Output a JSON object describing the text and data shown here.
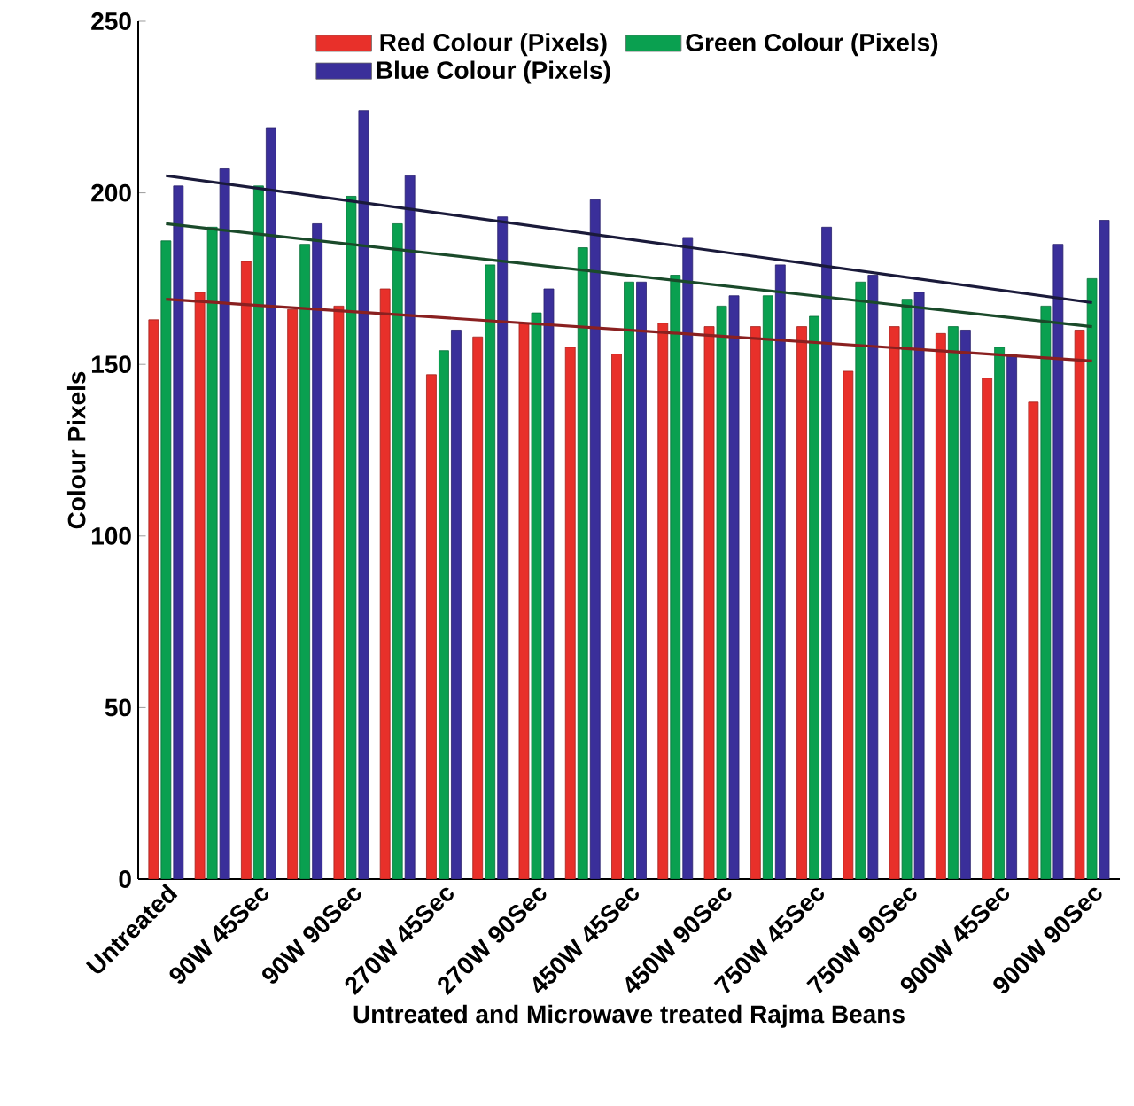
{
  "chart_data": {
    "type": "bar",
    "xlabel": "Untreated and Microwave treated Rajma Beans",
    "ylabel": "Colour Pixels",
    "categories": [
      "Untreated",
      null,
      "90W 45Sec",
      null,
      "90W 90Sec",
      null,
      "270W 45Sec",
      null,
      "270W 90Sec",
      null,
      "450W 45Sec",
      null,
      "450W 90Sec",
      null,
      "750W 45Sec",
      null,
      "750W 90Sec",
      null,
      "900W 45Sec",
      null,
      "900W 90Sec"
    ],
    "series": [
      {
        "name": "Red Colour (Pixels)",
        "color": "#e8302a",
        "values": [
          163,
          171,
          180,
          166,
          167,
          172,
          147,
          158,
          162,
          155,
          153,
          162,
          161,
          161,
          161,
          148,
          161,
          159,
          146,
          139,
          160
        ]
      },
      {
        "name": "Green Colour  (Pixels)",
        "color": "#0aa050",
        "values": [
          186,
          190,
          202,
          185,
          199,
          191,
          154,
          179,
          165,
          184,
          174,
          176,
          167,
          170,
          164,
          174,
          169,
          161,
          155,
          167,
          175
        ]
      },
      {
        "name": "Blue Colour (Pixels)",
        "color": "#3a2f9a",
        "values": [
          202,
          207,
          219,
          191,
          224,
          205,
          160,
          193,
          172,
          198,
          174,
          187,
          170,
          179,
          190,
          176,
          171,
          160,
          153,
          185,
          192
        ]
      },
      {
        "type": "line",
        "color": "#8a2020",
        "values": [
          169,
          null,
          null,
          null,
          null,
          null,
          null,
          null,
          null,
          null,
          null,
          null,
          null,
          null,
          null,
          null,
          null,
          null,
          null,
          null,
          151
        ]
      },
      {
        "type": "line",
        "color": "#1a4a2a",
        "values": [
          191,
          null,
          null,
          null,
          null,
          null,
          null,
          null,
          null,
          null,
          null,
          null,
          null,
          null,
          null,
          null,
          null,
          null,
          null,
          null,
          161
        ]
      },
      {
        "type": "line",
        "color": "#1a1a3a",
        "values": [
          205,
          null,
          null,
          null,
          null,
          null,
          null,
          null,
          null,
          null,
          null,
          null,
          null,
          null,
          null,
          null,
          null,
          null,
          null,
          null,
          168
        ]
      }
    ],
    "ylim": [
      0,
      250
    ],
    "yticks": [
      0,
      50,
      100,
      150,
      200,
      250
    ],
    "grid": false,
    "legend": "top"
  }
}
